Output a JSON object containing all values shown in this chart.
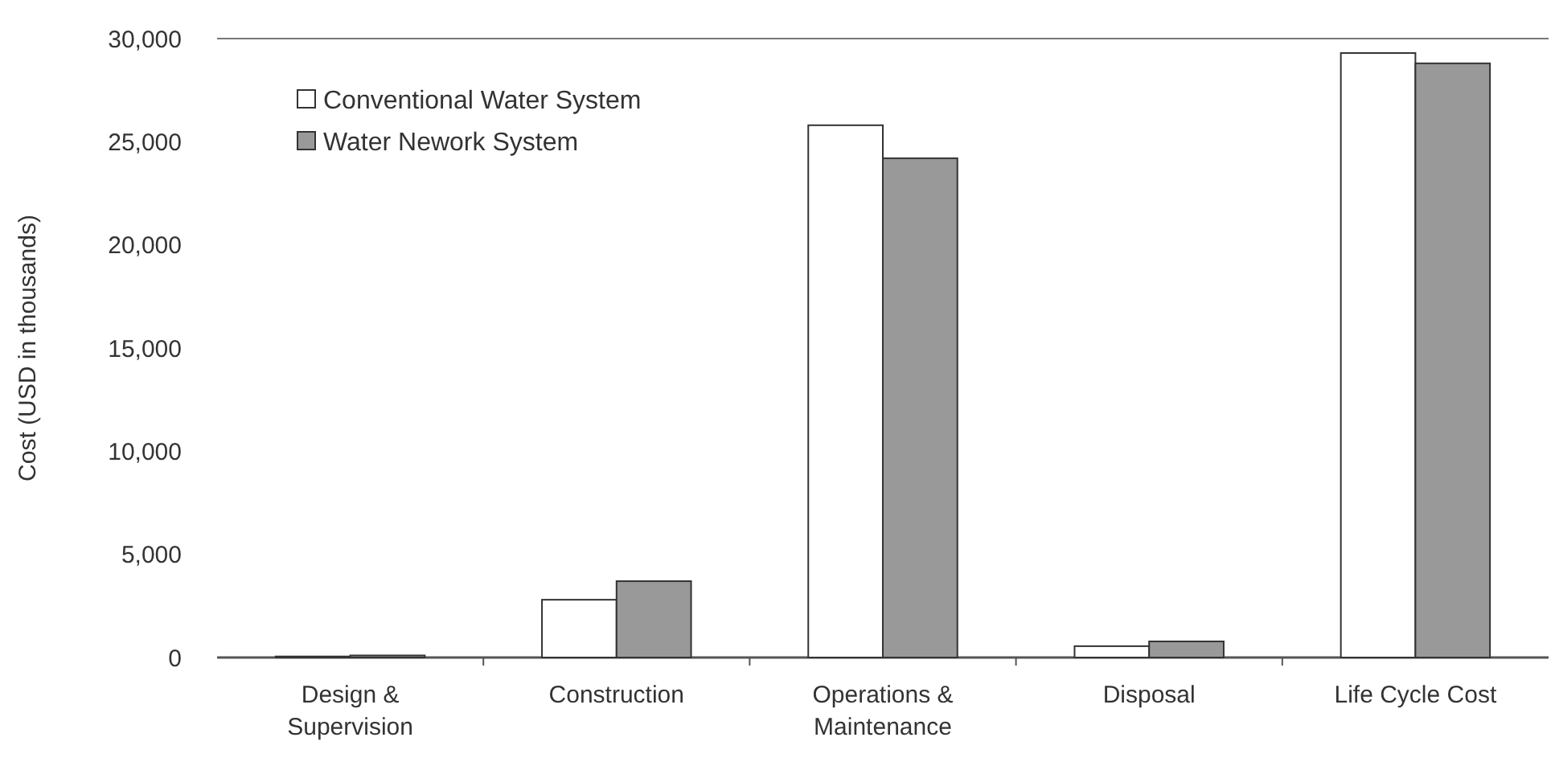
{
  "chart_data": {
    "type": "bar",
    "ylabel": "Cost (USD in thousands)",
    "categories": [
      "Design & Supervision",
      "Construction",
      "Operations & Maintenance",
      "Disposal",
      "Life Cycle Cost"
    ],
    "series": [
      {
        "name": "Conventional Water System",
        "color": "#ffffff",
        "values": [
          50,
          2800,
          25800,
          550,
          29300
        ]
      },
      {
        "name": "Water Nework System",
        "color": "#999999",
        "values": [
          100,
          3700,
          24200,
          780,
          28800
        ]
      }
    ],
    "ylim": [
      0,
      30000
    ],
    "yticks": [
      {
        "value": 0,
        "label": "0"
      },
      {
        "value": 5000,
        "label": "5,000"
      },
      {
        "value": 10000,
        "label": "10,000"
      },
      {
        "value": 15000,
        "label": "15,000"
      },
      {
        "value": 20000,
        "label": "20,000"
      },
      {
        "value": 25000,
        "label": "25,000"
      },
      {
        "value": 30000,
        "label": "30,000"
      }
    ],
    "legend": "top left",
    "grid": false
  }
}
